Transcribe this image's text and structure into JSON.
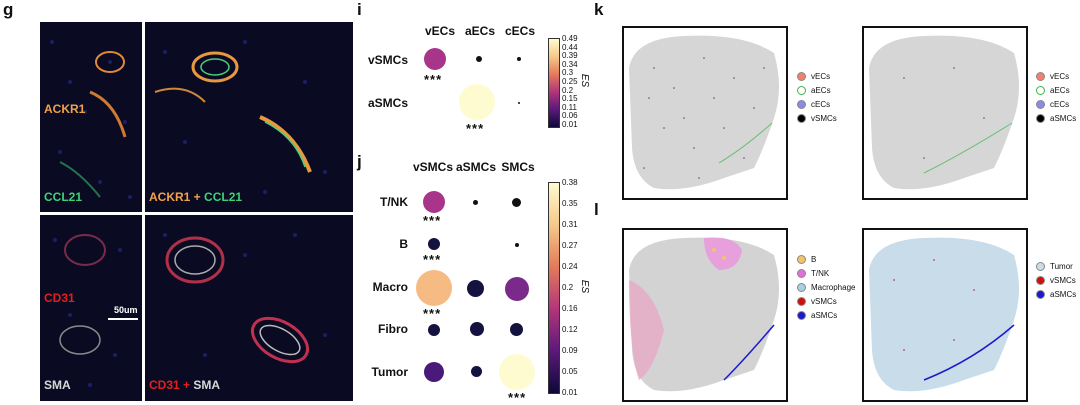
{
  "panels": {
    "g": "g",
    "i": "i",
    "j": "j",
    "k": "k",
    "l": "l"
  },
  "micrographs": {
    "top_left": {
      "label": "ACKR1",
      "label2": "CCL21"
    },
    "top_right": {
      "label_a": "ACKR1",
      "label_plus": " + ",
      "label_b": "CCL21",
      "scale": "50um"
    },
    "bottom_left": {
      "label": "CD31",
      "label2": "SMA",
      "scale": "50um"
    },
    "bottom_right": {
      "label_a": "CD31",
      "label_plus": " + ",
      "label_b": "SMA"
    },
    "colors": {
      "ackr1": "#f2a14a",
      "ccl21": "#3fd07a",
      "cd31": "#e02020",
      "sma": "#d8d8d8"
    }
  },
  "dotplot_i": {
    "columns": [
      "vECs",
      "aECs",
      "cECs"
    ],
    "rows": [
      "vSMCs",
      "aSMCs"
    ],
    "colorbar_ticks": [
      "0.49",
      "0.44",
      "0.39",
      "0.34",
      "0.3",
      "0.25",
      "0.2",
      "0.15",
      "0.11",
      "0.06",
      "0.01"
    ],
    "colorbar_label": "ES",
    "stars": "***"
  },
  "dotplot_j": {
    "columns": [
      "vSMCs",
      "aSMCs",
      "SMCs"
    ],
    "rows": [
      "T/NK",
      "B",
      "Macro",
      "Fibro",
      "Tumor"
    ],
    "colorbar_ticks": [
      "0.38",
      "0.35",
      "0.31",
      "0.27",
      "0.24",
      "0.2",
      "0.16",
      "0.12",
      "0.09",
      "0.05",
      "0.01"
    ],
    "colorbar_label": "ES",
    "stars": "***"
  },
  "legends": {
    "k_left": [
      {
        "label": "vECs",
        "color": "#f08070"
      },
      {
        "label": "aECs",
        "color": "#3ab54a"
      },
      {
        "label": "cECs",
        "color": "#8a8ae8"
      },
      {
        "label": "vSMCs",
        "color": "#000000"
      }
    ],
    "k_right": [
      {
        "label": "vECs",
        "color": "#f08070"
      },
      {
        "label": "aECs",
        "color": "#3ab54a"
      },
      {
        "label": "cECs",
        "color": "#8a8ae8"
      },
      {
        "label": "aSMCs",
        "color": "#000000"
      }
    ],
    "l_left": [
      {
        "label": "B",
        "color": "#f2c46a"
      },
      {
        "label": "T/NK",
        "color": "#e070d8"
      },
      {
        "label": "Macrophage",
        "color": "#a9cfe6"
      },
      {
        "label": "vSMCs",
        "color": "#cc1111"
      },
      {
        "label": "aSMCs",
        "color": "#1a1acc"
      }
    ],
    "l_right": [
      {
        "label": "Tumor",
        "color": "#c8dcea"
      },
      {
        "label": "vSMCs",
        "color": "#cc1111"
      },
      {
        "label": "aSMCs",
        "color": "#1a1acc"
      }
    ]
  }
}
